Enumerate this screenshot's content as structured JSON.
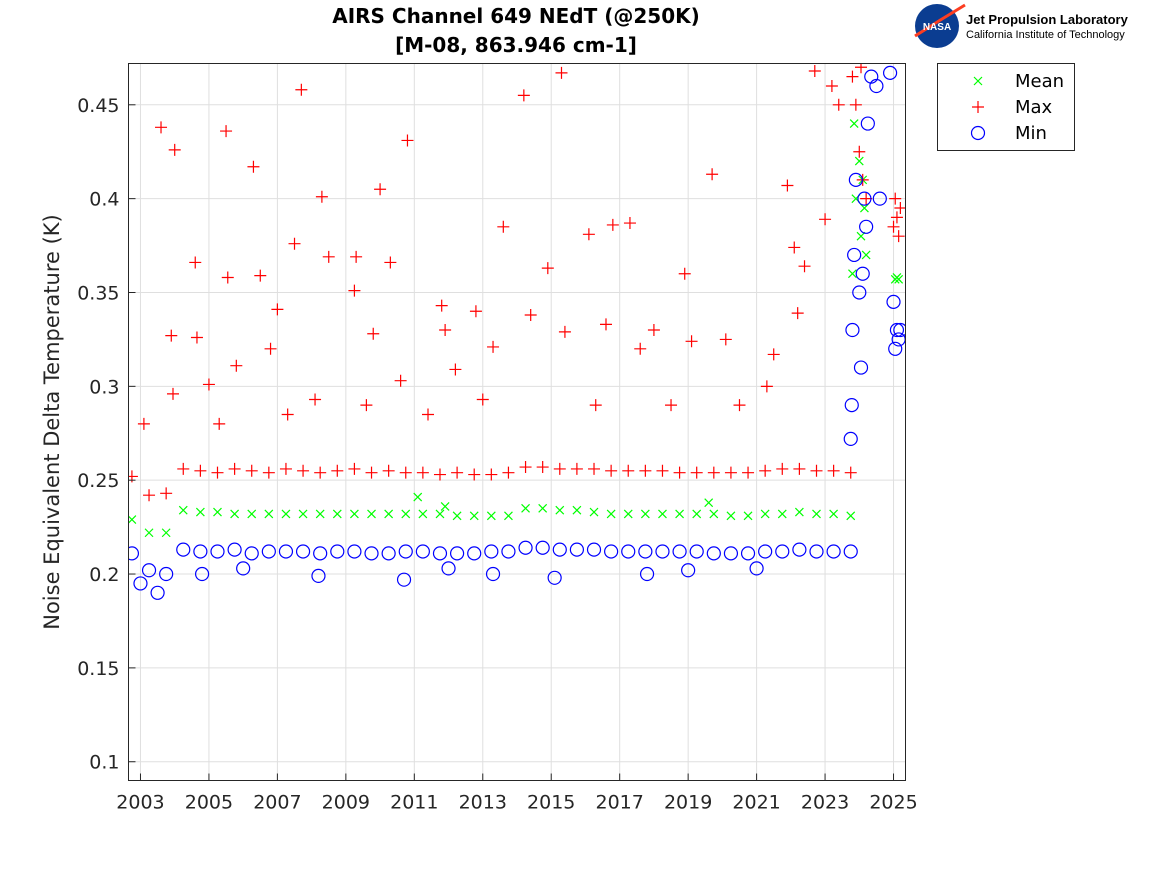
{
  "logo": {
    "line1": "Jet Propulsion Laboratory",
    "line2": "California Institute of Technology",
    "badge": "NASA"
  },
  "chart_data": {
    "type": "scatter",
    "title": [
      "AIRS Channel 649 NEdT (@250K)",
      "[M-08, 863.946 cm-1]"
    ],
    "xlabel": "",
    "ylabel": "Noise Equivalent Delta Temperature (K)",
    "xlim": [
      2002.65,
      2025.35
    ],
    "ylim": [
      0.09,
      0.472
    ],
    "xticks": [
      2003,
      2005,
      2007,
      2009,
      2011,
      2013,
      2015,
      2017,
      2019,
      2021,
      2023,
      2025
    ],
    "yticks": [
      0.1,
      0.15,
      0.2,
      0.25,
      0.3,
      0.35,
      0.4,
      0.45
    ],
    "ytick_labels": [
      "0.1",
      "0.15",
      "0.2",
      "0.25",
      "0.3",
      "0.35",
      "0.4",
      "0.45"
    ],
    "grid": true,
    "legend_position": "outside-top-right",
    "series": [
      {
        "name": "Mean",
        "marker": "x",
        "color": "#00ff00",
        "points": [
          [
            2002.75,
            0.229
          ],
          [
            2003.25,
            0.222
          ],
          [
            2003.75,
            0.222
          ],
          [
            2004.25,
            0.234
          ],
          [
            2004.75,
            0.233
          ],
          [
            2005.25,
            0.233
          ],
          [
            2005.75,
            0.232
          ],
          [
            2006.25,
            0.232
          ],
          [
            2006.75,
            0.232
          ],
          [
            2007.25,
            0.232
          ],
          [
            2007.75,
            0.232
          ],
          [
            2008.25,
            0.232
          ],
          [
            2008.75,
            0.232
          ],
          [
            2009.25,
            0.232
          ],
          [
            2009.75,
            0.232
          ],
          [
            2010.25,
            0.232
          ],
          [
            2010.75,
            0.232
          ],
          [
            2011.25,
            0.232
          ],
          [
            2011.75,
            0.232
          ],
          [
            2012.25,
            0.231
          ],
          [
            2012.75,
            0.231
          ],
          [
            2013.25,
            0.231
          ],
          [
            2013.75,
            0.231
          ],
          [
            2014.25,
            0.235
          ],
          [
            2014.75,
            0.235
          ],
          [
            2015.25,
            0.234
          ],
          [
            2015.75,
            0.234
          ],
          [
            2016.25,
            0.233
          ],
          [
            2016.75,
            0.232
          ],
          [
            2017.25,
            0.232
          ],
          [
            2017.75,
            0.232
          ],
          [
            2018.25,
            0.232
          ],
          [
            2018.75,
            0.232
          ],
          [
            2019.25,
            0.232
          ],
          [
            2019.75,
            0.232
          ],
          [
            2020.25,
            0.231
          ],
          [
            2020.75,
            0.231
          ],
          [
            2021.25,
            0.232
          ],
          [
            2021.75,
            0.232
          ],
          [
            2022.25,
            0.233
          ],
          [
            2022.75,
            0.232
          ],
          [
            2023.25,
            0.232
          ],
          [
            2023.75,
            0.231
          ],
          [
            2011.1,
            0.241
          ],
          [
            2011.9,
            0.236
          ],
          [
            2019.6,
            0.238
          ],
          [
            2023.8,
            0.36
          ],
          [
            2023.85,
            0.44
          ],
          [
            2023.9,
            0.4
          ],
          [
            2024.0,
            0.42
          ],
          [
            2024.05,
            0.38
          ],
          [
            2024.1,
            0.41
          ],
          [
            2024.15,
            0.395
          ],
          [
            2024.2,
            0.37
          ],
          [
            2025.05,
            0.357
          ],
          [
            2025.1,
            0.358
          ],
          [
            2025.15,
            0.357
          ]
        ]
      },
      {
        "name": "Max",
        "marker": "+",
        "color": "#ff0000",
        "points": [
          [
            2002.75,
            0.252
          ],
          [
            2003.25,
            0.242
          ],
          [
            2003.75,
            0.243
          ],
          [
            2004.25,
            0.256
          ],
          [
            2004.75,
            0.255
          ],
          [
            2005.25,
            0.254
          ],
          [
            2005.75,
            0.256
          ],
          [
            2006.25,
            0.255
          ],
          [
            2006.75,
            0.254
          ],
          [
            2007.25,
            0.256
          ],
          [
            2007.75,
            0.255
          ],
          [
            2008.25,
            0.254
          ],
          [
            2008.75,
            0.255
          ],
          [
            2009.25,
            0.256
          ],
          [
            2009.75,
            0.254
          ],
          [
            2010.25,
            0.255
          ],
          [
            2010.75,
            0.254
          ],
          [
            2011.25,
            0.254
          ],
          [
            2011.75,
            0.253
          ],
          [
            2012.25,
            0.254
          ],
          [
            2012.75,
            0.253
          ],
          [
            2013.25,
            0.253
          ],
          [
            2013.75,
            0.254
          ],
          [
            2014.25,
            0.257
          ],
          [
            2014.75,
            0.257
          ],
          [
            2015.25,
            0.256
          ],
          [
            2015.75,
            0.256
          ],
          [
            2016.25,
            0.256
          ],
          [
            2016.75,
            0.255
          ],
          [
            2017.25,
            0.255
          ],
          [
            2017.75,
            0.255
          ],
          [
            2018.25,
            0.255
          ],
          [
            2018.75,
            0.254
          ],
          [
            2019.25,
            0.254
          ],
          [
            2019.75,
            0.254
          ],
          [
            2020.25,
            0.254
          ],
          [
            2020.75,
            0.254
          ],
          [
            2021.25,
            0.255
          ],
          [
            2021.75,
            0.256
          ],
          [
            2022.25,
            0.256
          ],
          [
            2022.75,
            0.255
          ],
          [
            2023.25,
            0.255
          ],
          [
            2023.75,
            0.254
          ],
          [
            2003.1,
            0.28
          ],
          [
            2003.6,
            0.438
          ],
          [
            2004.0,
            0.426
          ],
          [
            2003.9,
            0.327
          ],
          [
            2004.6,
            0.366
          ],
          [
            2004.65,
            0.326
          ],
          [
            2005.0,
            0.301
          ],
          [
            2005.5,
            0.436
          ],
          [
            2005.55,
            0.358
          ],
          [
            2005.8,
            0.311
          ],
          [
            2006.3,
            0.417
          ],
          [
            2006.5,
            0.359
          ],
          [
            2007.0,
            0.341
          ],
          [
            2007.5,
            0.376
          ],
          [
            2007.7,
            0.458
          ],
          [
            2008.3,
            0.401
          ],
          [
            2008.5,
            0.369
          ],
          [
            2009.3,
            0.369
          ],
          [
            2009.25,
            0.351
          ],
          [
            2009.8,
            0.328
          ],
          [
            2010.0,
            0.405
          ],
          [
            2010.3,
            0.366
          ],
          [
            2010.8,
            0.431
          ],
          [
            2011.8,
            0.343
          ],
          [
            2011.9,
            0.33
          ],
          [
            2012.8,
            0.34
          ],
          [
            2013.3,
            0.321
          ],
          [
            2013.6,
            0.385
          ],
          [
            2014.2,
            0.455
          ],
          [
            2014.4,
            0.338
          ],
          [
            2014.9,
            0.363
          ],
          [
            2015.3,
            0.467
          ],
          [
            2015.4,
            0.329
          ],
          [
            2016.1,
            0.381
          ],
          [
            2016.6,
            0.333
          ],
          [
            2016.8,
            0.386
          ],
          [
            2017.3,
            0.387
          ],
          [
            2017.6,
            0.32
          ],
          [
            2018.0,
            0.33
          ],
          [
            2018.9,
            0.36
          ],
          [
            2019.1,
            0.324
          ],
          [
            2019.7,
            0.413
          ],
          [
            2020.1,
            0.325
          ],
          [
            2021.5,
            0.317
          ],
          [
            2021.9,
            0.407
          ],
          [
            2022.1,
            0.374
          ],
          [
            2022.4,
            0.364
          ],
          [
            2022.7,
            0.468
          ],
          [
            2023.0,
            0.389
          ],
          [
            2023.2,
            0.46
          ],
          [
            2023.4,
            0.45
          ],
          [
            2022.2,
            0.339
          ],
          [
            2012.2,
            0.309
          ],
          [
            2013.0,
            0.293
          ],
          [
            2010.6,
            0.303
          ],
          [
            2008.1,
            0.293
          ],
          [
            2006.8,
            0.32
          ],
          [
            2003.95,
            0.296
          ],
          [
            2005.3,
            0.28
          ],
          [
            2007.3,
            0.285
          ],
          [
            2009.6,
            0.29
          ],
          [
            2011.4,
            0.285
          ],
          [
            2016.3,
            0.29
          ],
          [
            2018.5,
            0.29
          ],
          [
            2020.5,
            0.29
          ],
          [
            2021.3,
            0.3
          ],
          [
            2023.8,
            0.465
          ],
          [
            2023.9,
            0.45
          ],
          [
            2024.0,
            0.425
          ],
          [
            2024.05,
            0.47
          ],
          [
            2024.1,
            0.41
          ],
          [
            2024.2,
            0.4
          ],
          [
            2025.0,
            0.385
          ],
          [
            2025.05,
            0.4
          ],
          [
            2025.1,
            0.39
          ],
          [
            2025.15,
            0.38
          ],
          [
            2025.2,
            0.395
          ]
        ]
      },
      {
        "name": "Min",
        "marker": "o",
        "color": "#0000ff",
        "points": [
          [
            2002.75,
            0.211
          ],
          [
            2003.25,
            0.202
          ],
          [
            2003.75,
            0.2
          ],
          [
            2004.25,
            0.213
          ],
          [
            2004.75,
            0.212
          ],
          [
            2005.25,
            0.212
          ],
          [
            2005.75,
            0.213
          ],
          [
            2006.25,
            0.211
          ],
          [
            2006.75,
            0.212
          ],
          [
            2007.25,
            0.212
          ],
          [
            2007.75,
            0.212
          ],
          [
            2008.25,
            0.211
          ],
          [
            2008.75,
            0.212
          ],
          [
            2009.25,
            0.212
          ],
          [
            2009.75,
            0.211
          ],
          [
            2010.25,
            0.211
          ],
          [
            2010.75,
            0.212
          ],
          [
            2011.25,
            0.212
          ],
          [
            2011.75,
            0.211
          ],
          [
            2012.25,
            0.211
          ],
          [
            2012.75,
            0.211
          ],
          [
            2013.25,
            0.212
          ],
          [
            2013.75,
            0.212
          ],
          [
            2014.25,
            0.214
          ],
          [
            2014.75,
            0.214
          ],
          [
            2015.25,
            0.213
          ],
          [
            2015.75,
            0.213
          ],
          [
            2016.25,
            0.213
          ],
          [
            2016.75,
            0.212
          ],
          [
            2017.25,
            0.212
          ],
          [
            2017.75,
            0.212
          ],
          [
            2018.25,
            0.212
          ],
          [
            2018.75,
            0.212
          ],
          [
            2019.25,
            0.212
          ],
          [
            2019.75,
            0.211
          ],
          [
            2020.25,
            0.211
          ],
          [
            2020.75,
            0.211
          ],
          [
            2021.25,
            0.212
          ],
          [
            2021.75,
            0.212
          ],
          [
            2022.25,
            0.213
          ],
          [
            2022.75,
            0.212
          ],
          [
            2023.25,
            0.212
          ],
          [
            2023.75,
            0.212
          ],
          [
            2015.1,
            0.198
          ],
          [
            2010.7,
            0.197
          ],
          [
            2008.2,
            0.199
          ],
          [
            2003.5,
            0.19
          ],
          [
            2004.8,
            0.2
          ],
          [
            2013.3,
            0.2
          ],
          [
            2017.8,
            0.2
          ],
          [
            2003.0,
            0.195
          ],
          [
            2006.0,
            0.203
          ],
          [
            2012.0,
            0.203
          ],
          [
            2019.0,
            0.202
          ],
          [
            2021.0,
            0.203
          ],
          [
            2023.75,
            0.272
          ],
          [
            2023.78,
            0.29
          ],
          [
            2023.8,
            0.33
          ],
          [
            2023.85,
            0.37
          ],
          [
            2023.9,
            0.41
          ],
          [
            2024.0,
            0.35
          ],
          [
            2024.05,
            0.31
          ],
          [
            2024.1,
            0.36
          ],
          [
            2024.15,
            0.4
          ],
          [
            2024.2,
            0.385
          ],
          [
            2024.25,
            0.44
          ],
          [
            2024.35,
            0.465
          ],
          [
            2024.5,
            0.46
          ],
          [
            2024.6,
            0.4
          ],
          [
            2024.9,
            0.467
          ],
          [
            2025.0,
            0.345
          ],
          [
            2025.05,
            0.32
          ],
          [
            2025.1,
            0.33
          ],
          [
            2025.15,
            0.325
          ],
          [
            2025.2,
            0.33
          ]
        ]
      }
    ]
  }
}
